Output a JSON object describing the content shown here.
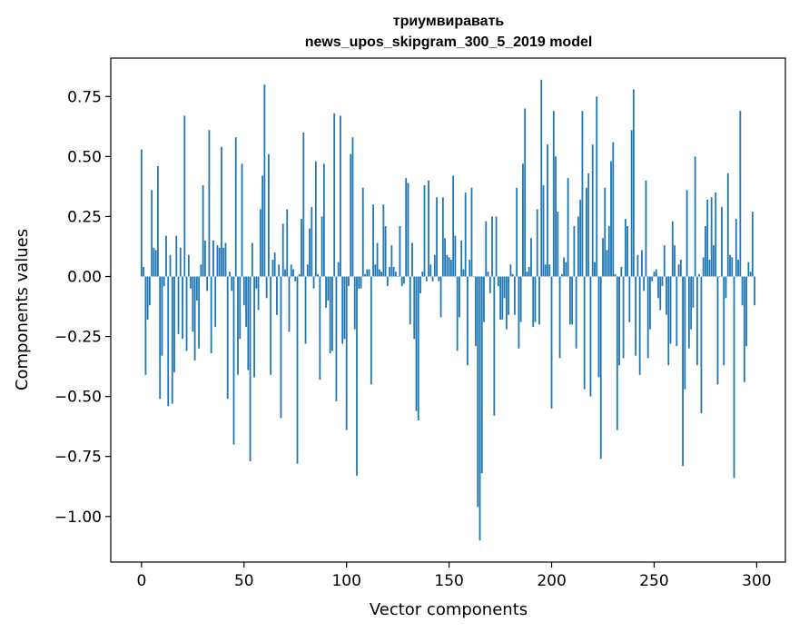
{
  "chart_data": {
    "type": "bar",
    "title": "триумвиравать",
    "subtitle": "news_upos_skipgram_300_5_2019 model",
    "xlabel": "Vector components",
    "ylabel": "Components values",
    "xlim": [
      -15,
      314
    ],
    "ylim": [
      -1.19,
      0.91
    ],
    "xticks": [
      0,
      50,
      100,
      150,
      200,
      250,
      300
    ],
    "xtick_labels": [
      "0",
      "50",
      "100",
      "150",
      "200",
      "250",
      "300"
    ],
    "yticks": [
      0.75,
      0.5,
      0.25,
      0.0,
      -0.25,
      -0.5,
      -0.75,
      -1.0
    ],
    "ytick_labels": [
      "0.75",
      "0.50",
      "0.25",
      "0.00",
      "−0.25",
      "−0.50",
      "−0.75",
      "−1.00"
    ],
    "grid": false,
    "bar_color": "#1f77b4",
    "x": [
      0,
      1,
      2,
      3,
      4,
      5,
      6,
      7,
      8,
      9,
      10,
      11,
      12,
      13,
      14,
      15,
      16,
      17,
      18,
      19,
      20,
      21,
      22,
      23,
      24,
      25,
      26,
      27,
      28,
      29,
      30,
      31,
      32,
      33,
      34,
      35,
      36,
      37,
      38,
      39,
      40,
      41,
      42,
      43,
      44,
      45,
      46,
      47,
      48,
      49,
      50,
      51,
      52,
      53,
      54,
      55,
      56,
      57,
      58,
      59,
      60,
      61,
      62,
      63,
      64,
      65,
      66,
      67,
      68,
      69,
      70,
      71,
      72,
      73,
      74,
      75,
      76,
      77,
      78,
      79,
      80,
      81,
      82,
      83,
      84,
      85,
      86,
      87,
      88,
      89,
      90,
      91,
      92,
      93,
      94,
      95,
      96,
      97,
      98,
      99,
      100,
      101,
      102,
      103,
      104,
      105,
      106,
      107,
      108,
      109,
      110,
      111,
      112,
      113,
      114,
      115,
      116,
      117,
      118,
      119,
      120,
      121,
      122,
      123,
      124,
      125,
      126,
      127,
      128,
      129,
      130,
      131,
      132,
      133,
      134,
      135,
      136,
      137,
      138,
      139,
      140,
      141,
      142,
      143,
      144,
      145,
      146,
      147,
      148,
      149,
      150,
      151,
      152,
      153,
      154,
      155,
      156,
      157,
      158,
      159,
      160,
      161,
      162,
      163,
      164,
      165,
      166,
      167,
      168,
      169,
      170,
      171,
      172,
      173,
      174,
      175,
      176,
      177,
      178,
      179,
      180,
      181,
      182,
      183,
      184,
      185,
      186,
      187,
      188,
      189,
      190,
      191,
      192,
      193,
      194,
      195,
      196,
      197,
      198,
      199,
      200,
      201,
      202,
      203,
      204,
      205,
      206,
      207,
      208,
      209,
      210,
      211,
      212,
      213,
      214,
      215,
      216,
      217,
      218,
      219,
      220,
      221,
      222,
      223,
      224,
      225,
      226,
      227,
      228,
      229,
      230,
      231,
      232,
      233,
      234,
      235,
      236,
      237,
      238,
      239,
      240,
      241,
      242,
      243,
      244,
      245,
      246,
      247,
      248,
      249,
      250,
      251,
      252,
      253,
      254,
      255,
      256,
      257,
      258,
      259,
      260,
      261,
      262,
      263,
      264,
      265,
      266,
      267,
      268,
      269,
      270,
      271,
      272,
      273,
      274,
      275,
      276,
      277,
      278,
      279,
      280,
      281,
      282,
      283,
      284,
      285,
      286,
      287,
      288,
      289,
      290,
      291,
      292,
      293,
      294,
      295,
      296,
      297,
      298,
      299
    ],
    "values": [
      0.53,
      0.04,
      -0.41,
      -0.18,
      -0.12,
      0.36,
      0.12,
      0.11,
      0.46,
      -0.51,
      -0.33,
      -0.04,
      0.17,
      -0.54,
      0.09,
      -0.53,
      -0.4,
      0.17,
      -0.24,
      0.12,
      -0.26,
      0.67,
      -0.31,
      0.09,
      -0.05,
      -0.23,
      -0.35,
      -0.1,
      -0.3,
      0.05,
      0.38,
      0.15,
      -0.06,
      0.61,
      -0.32,
      0.15,
      -0.21,
      0.13,
      0.12,
      0.54,
      0.12,
      0.14,
      -0.51,
      0.02,
      -0.06,
      -0.7,
      0.58,
      -0.41,
      -0.26,
      0.47,
      -0.12,
      -0.21,
      -0.39,
      -0.77,
      0.14,
      -0.42,
      -0.05,
      -0.14,
      0.28,
      0.42,
      0.8,
      -0.09,
      0.51,
      -0.41,
      0.07,
      0.1,
      -0.16,
      0.05,
      -0.59,
      0.22,
      0.03,
      0.28,
      -0.23,
      0.05,
      0.03,
      -0.02,
      -0.78,
      0.01,
      0.24,
      0.6,
      -0.28,
      0.05,
      0.2,
      0.29,
      -0.05,
      0.48,
      0.01,
      -0.43,
      0.25,
      0.47,
      -0.13,
      -0.1,
      -0.32,
      -0.31,
      0.68,
      -0.52,
      0.06,
      0.67,
      -0.28,
      -0.26,
      -0.64,
      -0.04,
      0.51,
      0.58,
      -0.22,
      -0.83,
      -0.05,
      -0.05,
      0.37,
      0.01,
      0.03,
      0.03,
      -0.45,
      0.3,
      0.05,
      0.14,
      0.03,
      0.02,
      0.3,
      0.21,
      -0.04,
      0.04,
      0.13,
      0.04,
      0.02,
      0.0,
      0.21,
      -0.04,
      -0.03,
      0.41,
      0.39,
      -0.2,
      0.14,
      -0.26,
      -0.56,
      -0.6,
      -0.07,
      0.02,
      0.38,
      -0.02,
      0.4,
      0.05,
      -0.02,
      0.09,
      0.33,
      -0.02,
      -0.17,
      0.33,
      0.16,
      0.09,
      0.08,
      0.07,
      0.42,
      0.17,
      -0.31,
      -0.17,
      0.15,
      0.03,
      0.35,
      -0.37,
      0.07,
      0.37,
      0.0,
      -0.29,
      -0.96,
      -1.1,
      -0.82,
      -0.19,
      0.23,
      0.02,
      -0.07,
      0.25,
      -0.58,
      0.25,
      -0.04,
      -0.18,
      -0.18,
      -0.09,
      -0.22,
      -0.16,
      0.05,
      0.01,
      -0.16,
      0.37,
      -0.3,
      -0.19,
      0.47,
      0.7,
      0.02,
      0.04,
      0.16,
      -0.21,
      -0.19,
      0.28,
      -0.2,
      0.82,
      0.38,
      0.05,
      0.55,
      0.05,
      -0.55,
      0.69,
      0.5,
      0.27,
      -0.34,
      0.01,
      0.08,
      0.06,
      0.41,
      -0.2,
      -0.2,
      0.21,
      -0.3,
      0.25,
      0.32,
      0.69,
      -0.47,
      0.37,
      0.43,
      -0.5,
      0.55,
      0.06,
      0.75,
      -0.42,
      -0.76,
      0.16,
      0.37,
      0.11,
      0.21,
      0.48,
      0.56,
      0.01,
      -0.64,
      -0.37,
      0.04,
      -0.34,
      0.24,
      0.21,
      -0.19,
      0.61,
      0.78,
      -0.33,
      0.09,
      -0.41,
      0.11,
      -0.06,
      0.4,
      -0.34,
      -0.22,
      -0.02,
      0.02,
      0.03,
      -0.09,
      -0.14,
      -0.04,
      0.13,
      -0.16,
      -0.37,
      -0.28,
      0.23,
      0.13,
      -0.29,
      0.05,
      0.07,
      -0.79,
      -0.47,
      0.36,
      -0.3,
      -0.22,
      -0.13,
      0.5,
      -0.37,
      0.01,
      -0.57,
      0.08,
      0.21,
      0.32,
      0.07,
      0.33,
      0.13,
      0.35,
      -0.45,
      0.0,
      0.29,
      -0.37,
      -0.09,
      0.43,
      0.09,
      0.08,
      -0.84,
      0.24,
      0.07,
      0.69,
      -0.12,
      -0.44,
      -0.29,
      0.06,
      0.02,
      0.27,
      -0.12
    ]
  }
}
